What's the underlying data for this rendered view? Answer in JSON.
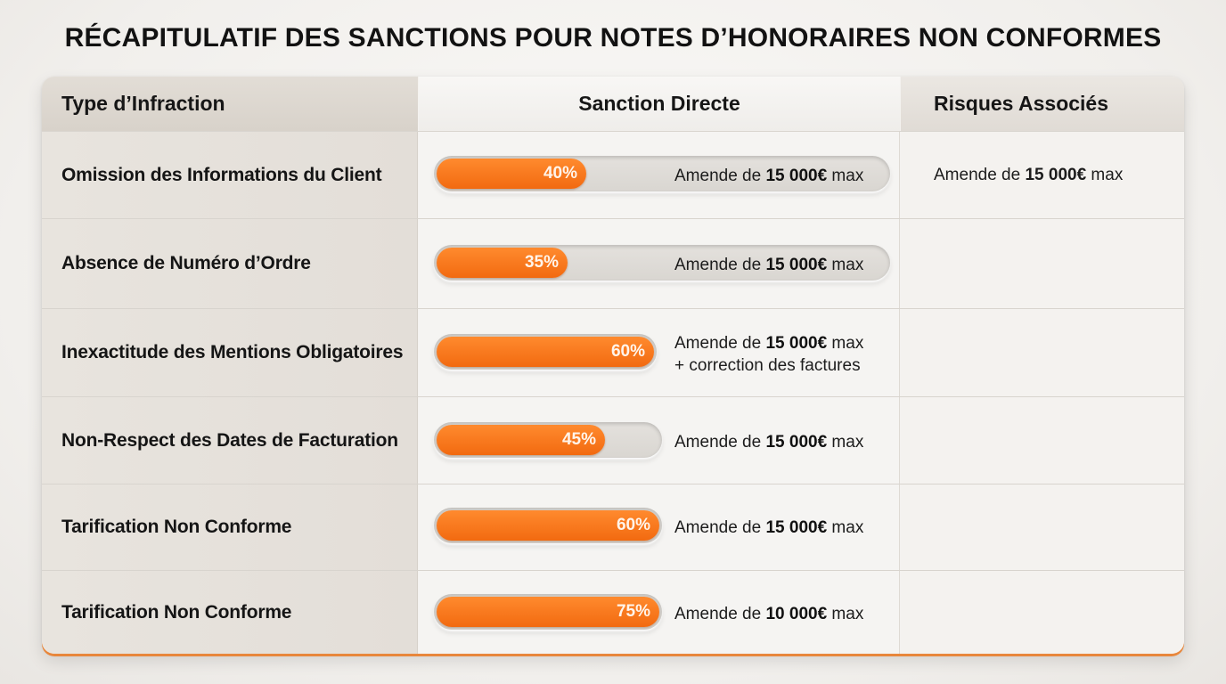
{
  "title": "RÉCAPITULATIF DES SANCTIONS POUR NOTES D’HONORAIRES NON CONFORMES",
  "columns": {
    "type": "Type d’Infraction",
    "sanction": "Sanction Directe",
    "risques": "Risques Associés"
  },
  "colors": {
    "accent": "#f26a10",
    "header_left": "#dcd6ce"
  },
  "rows": [
    {
      "infraction": "Omission des Informations du Client",
      "percent": 40,
      "percent_label": "40%",
      "amende_prefix": "Amende de ",
      "amende_amount": "15 000€",
      "amende_suffix": " max",
      "extra": "",
      "risque_prefix": "Amende de ",
      "risque_amount": "15 000€",
      "risque_suffix": " max"
    },
    {
      "infraction": "Absence de Numéro d’Ordre",
      "percent": 35,
      "percent_label": "35%",
      "amende_prefix": "Amende de ",
      "amende_amount": "15 000€",
      "amende_suffix": " max",
      "extra": ""
    },
    {
      "infraction": "Inexactitude des Mentions Obligatoires",
      "percent": 60,
      "percent_label": "60%",
      "amende_prefix": "Amende de ",
      "amende_amount": "15 000€",
      "amende_suffix": " max",
      "extra": "+ correction des factures"
    },
    {
      "infraction": "Non-Respect des Dates de Facturation",
      "percent": 45,
      "percent_label": "45%",
      "amende_prefix": "Amende de ",
      "amende_amount": "15 000€",
      "amende_suffix": " max",
      "extra": ""
    },
    {
      "infraction": "Tarification Non Conforme",
      "percent": 60,
      "percent_label": "60%",
      "amende_prefix": "Amende de ",
      "amende_amount": "15 000€",
      "amende_suffix": " max",
      "extra": ""
    },
    {
      "infraction": "Tarification Non Conforme",
      "percent": 75,
      "percent_label": "75%",
      "amende_prefix": "Amende de ",
      "amende_amount": "10 000€",
      "amende_suffix": " max",
      "extra": ""
    }
  ]
}
